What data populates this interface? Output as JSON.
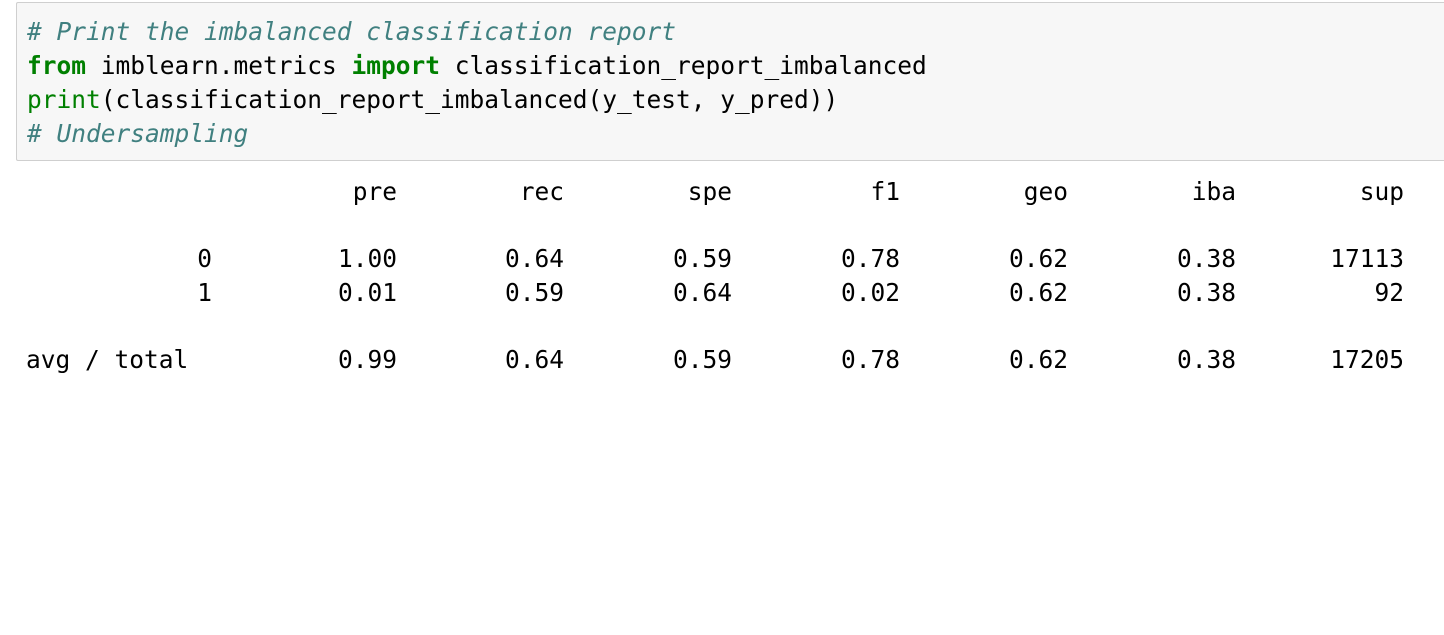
{
  "code_cell": {
    "lines": [
      [
        {
          "type": "comment",
          "text": "# Print the imbalanced classification report"
        }
      ],
      [
        {
          "type": "kw",
          "text": "from"
        },
        {
          "type": "plain",
          "text": " imblearn.metrics "
        },
        {
          "type": "kw",
          "text": "import"
        },
        {
          "type": "plain",
          "text": " classification_report_imbalanced"
        }
      ],
      [
        {
          "type": "builtin",
          "text": "print"
        },
        {
          "type": "plain",
          "text": "(classification_report_imbalanced(y_test, y_pred))"
        }
      ],
      [
        {
          "type": "comment",
          "text": "# Undersampling"
        }
      ]
    ]
  },
  "report": {
    "headers": [
      "pre",
      "rec",
      "spe",
      "f1",
      "geo",
      "iba",
      "sup"
    ],
    "rows": [
      {
        "label": "0",
        "values": [
          "1.00",
          "0.64",
          "0.59",
          "0.78",
          "0.62",
          "0.38",
          "17113"
        ]
      },
      {
        "label": "1",
        "values": [
          "0.01",
          "0.59",
          "0.64",
          "0.02",
          "0.62",
          "0.38",
          "92"
        ]
      }
    ],
    "total": {
      "label": "avg / total",
      "values": [
        "0.99",
        "0.64",
        "0.59",
        "0.78",
        "0.62",
        "0.38",
        "17205"
      ]
    }
  },
  "colors": {
    "comment": "#408080",
    "keyword": "#008000",
    "cell_background": "#f7f7f7",
    "cell_border": "#cfcfcf"
  }
}
